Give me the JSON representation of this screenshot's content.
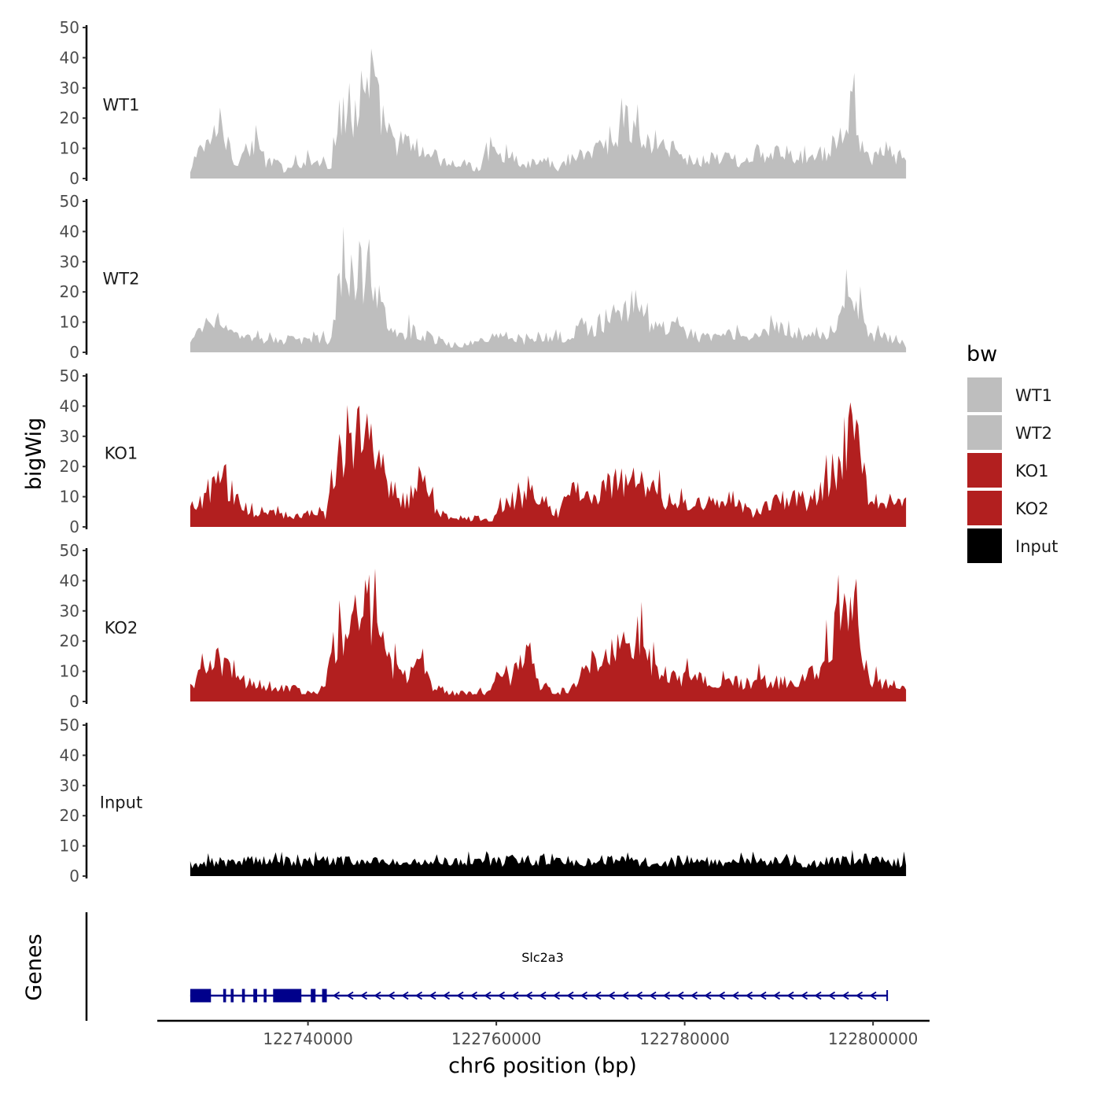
{
  "chart_data": {
    "type": "area",
    "chromosome": "chr6",
    "xlabel": "chr6 position (bp)",
    "ylabel": "bigWig",
    "genes_label": "Genes",
    "xlim": [
      122724000,
      122806000
    ],
    "data_range": [
      122727500,
      122803500
    ],
    "x_ticks": [
      122740000,
      122760000,
      122780000,
      122800000
    ],
    "x_tick_labels": [
      "122740000",
      "122760000",
      "122780000",
      "122800000"
    ],
    "ylim": [
      0,
      50
    ],
    "y_ticks": [
      0,
      10,
      20,
      30,
      40,
      50
    ],
    "y_tick_labels": [
      "0",
      "10",
      "20",
      "30",
      "40",
      "50"
    ],
    "legend": {
      "title": "bw",
      "position": "right",
      "entries": [
        {
          "label": "WT1",
          "color": "#bebebe"
        },
        {
          "label": "WT2",
          "color": "#bebebe"
        },
        {
          "label": "KO1",
          "color": "#b21f1f"
        },
        {
          "label": "KO2",
          "color": "#b21f1f"
        },
        {
          "label": "Input",
          "color": "#000000"
        }
      ]
    },
    "series": [
      {
        "name": "WT1",
        "color": "#bebebe",
        "profile": [
          [
            122727500,
            2
          ],
          [
            122728500,
            12
          ],
          [
            122729500,
            10
          ],
          [
            122730500,
            20
          ],
          [
            122731500,
            12
          ],
          [
            122732500,
            6
          ],
          [
            122733500,
            9
          ],
          [
            122734500,
            14
          ],
          [
            122735500,
            5
          ],
          [
            122736500,
            6
          ],
          [
            122737500,
            3
          ],
          [
            122738500,
            5
          ],
          [
            122739500,
            6
          ],
          [
            122740500,
            6
          ],
          [
            122741500,
            5
          ],
          [
            122742500,
            5
          ],
          [
            122743000,
            20
          ],
          [
            122744000,
            22
          ],
          [
            122745000,
            24
          ],
          [
            122746000,
            26
          ],
          [
            122746600,
            38
          ],
          [
            122747500,
            25
          ],
          [
            122748500,
            16
          ],
          [
            122749500,
            13
          ],
          [
            122751000,
            12
          ],
          [
            122752500,
            9
          ],
          [
            122753500,
            8
          ],
          [
            122754000,
            6
          ],
          [
            122755500,
            5
          ],
          [
            122757000,
            5
          ],
          [
            122758000,
            3
          ],
          [
            122759000,
            10
          ],
          [
            122760500,
            10
          ],
          [
            122762000,
            7
          ],
          [
            122763500,
            5
          ],
          [
            122765000,
            6
          ],
          [
            122766500,
            4
          ],
          [
            122768000,
            7
          ],
          [
            122769500,
            10
          ],
          [
            122771000,
            11
          ],
          [
            122772500,
            16
          ],
          [
            122773500,
            22
          ],
          [
            122774500,
            17
          ],
          [
            122776000,
            13
          ],
          [
            122777000,
            10
          ],
          [
            122778500,
            12
          ],
          [
            122780000,
            7
          ],
          [
            122781500,
            6
          ],
          [
            122783000,
            8
          ],
          [
            122784500,
            7
          ],
          [
            122786000,
            6
          ],
          [
            122787500,
            9
          ],
          [
            122789000,
            8
          ],
          [
            122790500,
            9
          ],
          [
            122792000,
            7
          ],
          [
            122793500,
            10
          ],
          [
            122795000,
            10
          ],
          [
            122796000,
            13
          ],
          [
            122797000,
            20
          ],
          [
            122797600,
            25
          ],
          [
            122798500,
            16
          ],
          [
            122799500,
            5
          ],
          [
            122800500,
            8
          ],
          [
            122801500,
            10
          ],
          [
            122803500,
            6
          ]
        ]
      },
      {
        "name": "WT2",
        "color": "#bebebe",
        "profile": [
          [
            122727500,
            3
          ],
          [
            122728500,
            8
          ],
          [
            122729500,
            12
          ],
          [
            122730500,
            14
          ],
          [
            122731500,
            10
          ],
          [
            122732500,
            5
          ],
          [
            122734000,
            5
          ],
          [
            122735500,
            4
          ],
          [
            122737000,
            4
          ],
          [
            122738500,
            5
          ],
          [
            122740000,
            4
          ],
          [
            122741500,
            5
          ],
          [
            122742500,
            4
          ],
          [
            122743000,
            20
          ],
          [
            122744000,
            25
          ],
          [
            122745000,
            27
          ],
          [
            122746000,
            28
          ],
          [
            122746500,
            33
          ],
          [
            122747500,
            20
          ],
          [
            122748500,
            8
          ],
          [
            122750000,
            7
          ],
          [
            122751500,
            8
          ],
          [
            122753000,
            5
          ],
          [
            122754500,
            4
          ],
          [
            122755500,
            2
          ],
          [
            122757000,
            3
          ],
          [
            122758500,
            5
          ],
          [
            122760000,
            5
          ],
          [
            122761500,
            6
          ],
          [
            122763000,
            4
          ],
          [
            122764500,
            6
          ],
          [
            122766000,
            6
          ],
          [
            122767500,
            5
          ],
          [
            122769000,
            9
          ],
          [
            122770500,
            9
          ],
          [
            122772000,
            12
          ],
          [
            122773500,
            15
          ],
          [
            122774500,
            18
          ],
          [
            122776000,
            12
          ],
          [
            122777500,
            8
          ],
          [
            122779000,
            8
          ],
          [
            122780500,
            7
          ],
          [
            122782000,
            5
          ],
          [
            122783500,
            5
          ],
          [
            122785000,
            7
          ],
          [
            122786500,
            5
          ],
          [
            122788000,
            5
          ],
          [
            122789500,
            8
          ],
          [
            122791000,
            9
          ],
          [
            122792500,
            5
          ],
          [
            122794000,
            6
          ],
          [
            122795500,
            8
          ],
          [
            122796500,
            14
          ],
          [
            122797500,
            22
          ],
          [
            122798500,
            15
          ],
          [
            122799500,
            5
          ],
          [
            122801000,
            6
          ],
          [
            122802500,
            5
          ],
          [
            122803500,
            2
          ]
        ]
      },
      {
        "name": "KO1",
        "color": "#b21f1f",
        "profile": [
          [
            122727500,
            6
          ],
          [
            122728500,
            10
          ],
          [
            122729500,
            13
          ],
          [
            122730500,
            17
          ],
          [
            122731500,
            15
          ],
          [
            122732500,
            10
          ],
          [
            122733500,
            6
          ],
          [
            122735000,
            4
          ],
          [
            122736500,
            5
          ],
          [
            122738000,
            4
          ],
          [
            122739500,
            5
          ],
          [
            122741000,
            6
          ],
          [
            122742000,
            4
          ],
          [
            122742500,
            18
          ],
          [
            122743500,
            28
          ],
          [
            122744500,
            27
          ],
          [
            122745500,
            35
          ],
          [
            122746500,
            36
          ],
          [
            122747500,
            25
          ],
          [
            122748500,
            17
          ],
          [
            122749500,
            12
          ],
          [
            122750500,
            8
          ],
          [
            122751500,
            18
          ],
          [
            122752500,
            15
          ],
          [
            122753500,
            6
          ],
          [
            122755000,
            3
          ],
          [
            122756500,
            3
          ],
          [
            122758000,
            3
          ],
          [
            122759500,
            2
          ],
          [
            122760500,
            8
          ],
          [
            122762000,
            10
          ],
          [
            122763500,
            11
          ],
          [
            122765000,
            10
          ],
          [
            122766500,
            3
          ],
          [
            122767500,
            15
          ],
          [
            122769000,
            11
          ],
          [
            122770500,
            12
          ],
          [
            122772000,
            15
          ],
          [
            122773500,
            17
          ],
          [
            122775000,
            19
          ],
          [
            122776500,
            13
          ],
          [
            122778000,
            10
          ],
          [
            122779500,
            11
          ],
          [
            122781000,
            9
          ],
          [
            122782500,
            8
          ],
          [
            122784000,
            7
          ],
          [
            122785500,
            9
          ],
          [
            122787000,
            5
          ],
          [
            122788500,
            7
          ],
          [
            122790000,
            9
          ],
          [
            122791500,
            10
          ],
          [
            122793000,
            9
          ],
          [
            122794500,
            12
          ],
          [
            122795500,
            15
          ],
          [
            122796500,
            25
          ],
          [
            122797500,
            33
          ],
          [
            122798500,
            26
          ],
          [
            122799500,
            10
          ],
          [
            122800500,
            9
          ],
          [
            122802000,
            8
          ],
          [
            122803500,
            8
          ]
        ]
      },
      {
        "name": "KO2",
        "color": "#b21f1f",
        "profile": [
          [
            122727500,
            5
          ],
          [
            122728500,
            10
          ],
          [
            122729500,
            12
          ],
          [
            122730500,
            14
          ],
          [
            122731500,
            12
          ],
          [
            122732500,
            9
          ],
          [
            122733500,
            6
          ],
          [
            122735000,
            7
          ],
          [
            122736500,
            5
          ],
          [
            122738000,
            5
          ],
          [
            122739500,
            4
          ],
          [
            122741000,
            3
          ],
          [
            122742000,
            5
          ],
          [
            122742500,
            18
          ],
          [
            122743500,
            23
          ],
          [
            122744500,
            28
          ],
          [
            122745500,
            30
          ],
          [
            122746500,
            35
          ],
          [
            122747500,
            24
          ],
          [
            122748500,
            17
          ],
          [
            122749500,
            10
          ],
          [
            122750500,
            10
          ],
          [
            122751500,
            15
          ],
          [
            122752500,
            9
          ],
          [
            122753500,
            5
          ],
          [
            122755000,
            3
          ],
          [
            122756500,
            3
          ],
          [
            122758000,
            3
          ],
          [
            122759000,
            3
          ],
          [
            122760000,
            8
          ],
          [
            122761500,
            9
          ],
          [
            122762500,
            12
          ],
          [
            122763500,
            16
          ],
          [
            122764500,
            7
          ],
          [
            122766000,
            3
          ],
          [
            122767500,
            4
          ],
          [
            122769000,
            10
          ],
          [
            122770500,
            13
          ],
          [
            122772000,
            17
          ],
          [
            122773500,
            20
          ],
          [
            122775000,
            22
          ],
          [
            122776500,
            15
          ],
          [
            122778000,
            10
          ],
          [
            122779500,
            9
          ],
          [
            122781000,
            8
          ],
          [
            122782500,
            7
          ],
          [
            122784000,
            8
          ],
          [
            122785500,
            7
          ],
          [
            122787000,
            7
          ],
          [
            122788500,
            8
          ],
          [
            122790000,
            7
          ],
          [
            122791500,
            6
          ],
          [
            122793000,
            9
          ],
          [
            122794500,
            10
          ],
          [
            122795500,
            20
          ],
          [
            122796500,
            30
          ],
          [
            122797500,
            38
          ],
          [
            122798500,
            22
          ],
          [
            122799500,
            8
          ],
          [
            122800500,
            7
          ],
          [
            122802000,
            6
          ],
          [
            122803500,
            4
          ]
        ]
      },
      {
        "name": "Input",
        "color": "#000000",
        "profile": [
          [
            122727500,
            3
          ],
          [
            122730000,
            5
          ],
          [
            122733000,
            6
          ],
          [
            122736000,
            5
          ],
          [
            122739000,
            5
          ],
          [
            122742000,
            6
          ],
          [
            122745000,
            5
          ],
          [
            122748000,
            5
          ],
          [
            122751000,
            5
          ],
          [
            122754000,
            6
          ],
          [
            122757000,
            5
          ],
          [
            122760000,
            5
          ],
          [
            122763000,
            6
          ],
          [
            122766000,
            6
          ],
          [
            122769000,
            5
          ],
          [
            122772000,
            6
          ],
          [
            122775000,
            5
          ],
          [
            122778000,
            5
          ],
          [
            122781000,
            6
          ],
          [
            122784000,
            5
          ],
          [
            122787000,
            5
          ],
          [
            122790000,
            5
          ],
          [
            122793000,
            5
          ],
          [
            122796000,
            5
          ],
          [
            122799000,
            6
          ],
          [
            122801500,
            5
          ],
          [
            122803500,
            5
          ]
        ]
      }
    ],
    "genes": [
      {
        "name": "Slc2a3",
        "strand": "-",
        "start": 122727500,
        "end": 122801500,
        "color": "#00008b",
        "exons": [
          [
            122727500,
            122729700
          ],
          [
            122731000,
            122731300
          ],
          [
            122731800,
            122732100
          ],
          [
            122733000,
            122733300
          ],
          [
            122734200,
            122734600
          ],
          [
            122735300,
            122735600
          ],
          [
            122736300,
            122739300
          ],
          [
            122740300,
            122740800
          ],
          [
            122741500,
            122742000
          ]
        ]
      }
    ]
  }
}
